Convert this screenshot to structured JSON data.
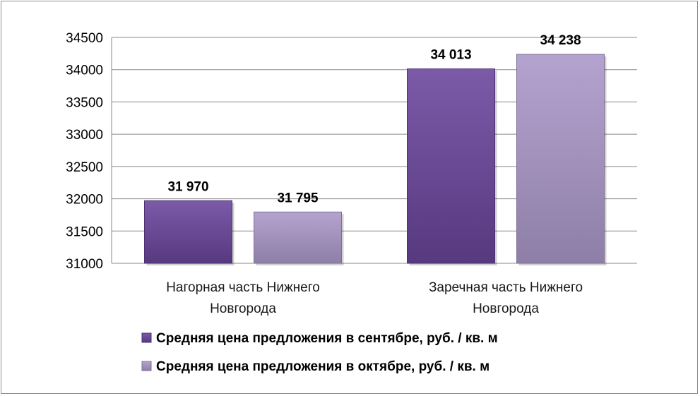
{
  "chart_data": {
    "type": "bar",
    "categories": [
      [
        "Нагорная часть Нижнего",
        "Новгорода"
      ],
      [
        "Заречная часть Нижнего",
        "Новгорода"
      ]
    ],
    "series": [
      {
        "name": "Средняя цена предложения в сентябре, руб. / кв. м",
        "values": [
          31970,
          34013
        ],
        "value_labels": [
          "31 970",
          "34 013"
        ],
        "color": "#6f4e9a"
      },
      {
        "name": "Средняя цена предложения в октябре, руб. / кв. м",
        "values": [
          31795,
          34238
        ],
        "value_labels": [
          "31 795",
          "34 238"
        ],
        "color": "#a897c4"
      }
    ],
    "ylim": [
      31000,
      34500
    ],
    "yticks": [
      "31000",
      "31500",
      "32000",
      "32500",
      "33000",
      "33500",
      "34000",
      "34500"
    ],
    "grid": true,
    "legend_position": "bottom"
  }
}
